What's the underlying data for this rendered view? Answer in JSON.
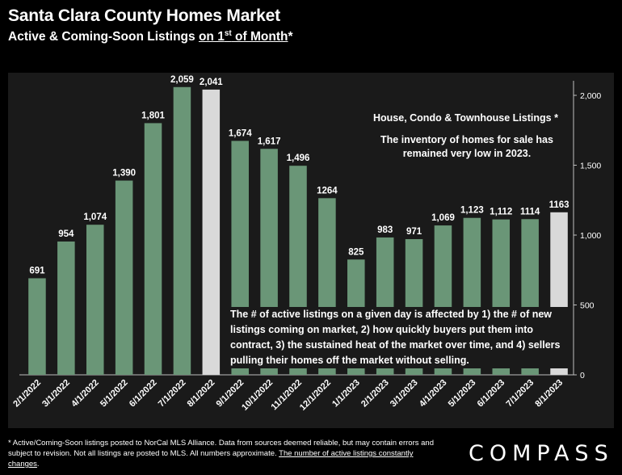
{
  "header": {
    "title": "Santa Clara County Homes Market",
    "subtitle_prefix": "Active & Coming-Soon Listings ",
    "subtitle_underlined_a": "on 1",
    "subtitle_sup": "st",
    "subtitle_underlined_b": " of Month",
    "subtitle_suffix": "*"
  },
  "notes": {
    "legend": "House, Condo & Townhouse Listings *",
    "inventory": "The inventory of homes for sale has remained very low in 2023.",
    "explanation": "The # of active listings on a given day is affected by 1) the # of new listings coming on market, 2) how quickly buyers put them into contract, 3) the sustained heat of the market over time, and 4) sellers pulling their homes off the market without selling."
  },
  "footnote": {
    "text": "* Active/Coming-Soon listings posted to NorCal MLS Alliance.  Data from sources deemed reliable, but may contain errors and subject to revision.  Not all listings are posted to MLS. All numbers approximate. ",
    "underlined": "The number of active listings constantly changes",
    "end": "."
  },
  "brand": {
    "logo_text": "COMPASS"
  },
  "colors": {
    "bar": "#6a9677",
    "highlight_bar": "#d9d9d9",
    "background": "#000000",
    "plot_background": "#1a1a1a"
  },
  "chart_data": {
    "type": "bar",
    "categories": [
      "2/1/2022",
      "3/1/2022",
      "4/1/2022",
      "5/1/2022",
      "6/1/2022",
      "7/1/2022",
      "8/1/2022",
      "9/1/2022",
      "10/1/2022",
      "11/1/2022",
      "12/1/2022",
      "1/1/2023",
      "2/1/2023",
      "3/1/2023",
      "4/1/2023",
      "5/1/2023",
      "6/1/2023",
      "7/1/2023",
      "8/1/2023"
    ],
    "values": [
      691,
      954,
      1074,
      1390,
      1801,
      2059,
      2041,
      1674,
      1617,
      1496,
      1264,
      825,
      983,
      971,
      1069,
      1123,
      1112,
      1114,
      1163
    ],
    "data_labels": [
      "691",
      "954",
      "1,074",
      "1,390",
      "1,801",
      "2,059",
      "2,041",
      "1,674",
      "1,617",
      "1,496",
      "1264",
      "825",
      "983",
      "971",
      "1,069",
      "1,123",
      "1,112",
      "1114",
      "1163"
    ],
    "highlighted_indices": [
      6,
      18
    ],
    "yticks": [
      0,
      500,
      1000,
      1500,
      2000
    ],
    "ytick_labels": [
      "0",
      "500",
      "1,000",
      "1,500",
      "2,000"
    ],
    "ylim": [
      0,
      2100
    ],
    "yaxis_position": "right",
    "grid": false
  }
}
